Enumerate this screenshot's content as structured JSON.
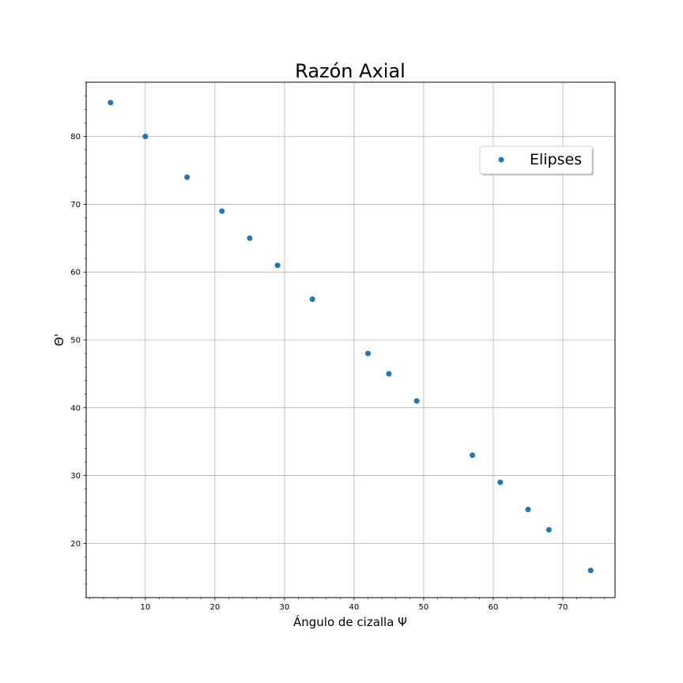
{
  "chart_data": {
    "type": "scatter",
    "title": "Razón Axial",
    "xlabel": "Ángulo de cizalla Ψ",
    "ylabel": "Θ'",
    "xlim": [
      1.5,
      77.5
    ],
    "ylim": [
      12,
      88
    ],
    "xticks": [
      10,
      20,
      30,
      40,
      50,
      60,
      70
    ],
    "yticks": [
      20,
      30,
      40,
      50,
      60,
      70,
      80
    ],
    "x_minor_step": 2,
    "y_minor_step": 2,
    "grid": true,
    "legend_position": "upper right",
    "series": [
      {
        "name": "Elipses",
        "color": "#1f77b4",
        "x": [
          5,
          10,
          16,
          21,
          25,
          29,
          34,
          42,
          45,
          49,
          57,
          61,
          65,
          68,
          74
        ],
        "y": [
          85,
          80,
          74,
          69,
          65,
          61,
          56,
          48,
          45,
          41,
          33,
          29,
          25,
          22,
          16
        ]
      }
    ]
  }
}
